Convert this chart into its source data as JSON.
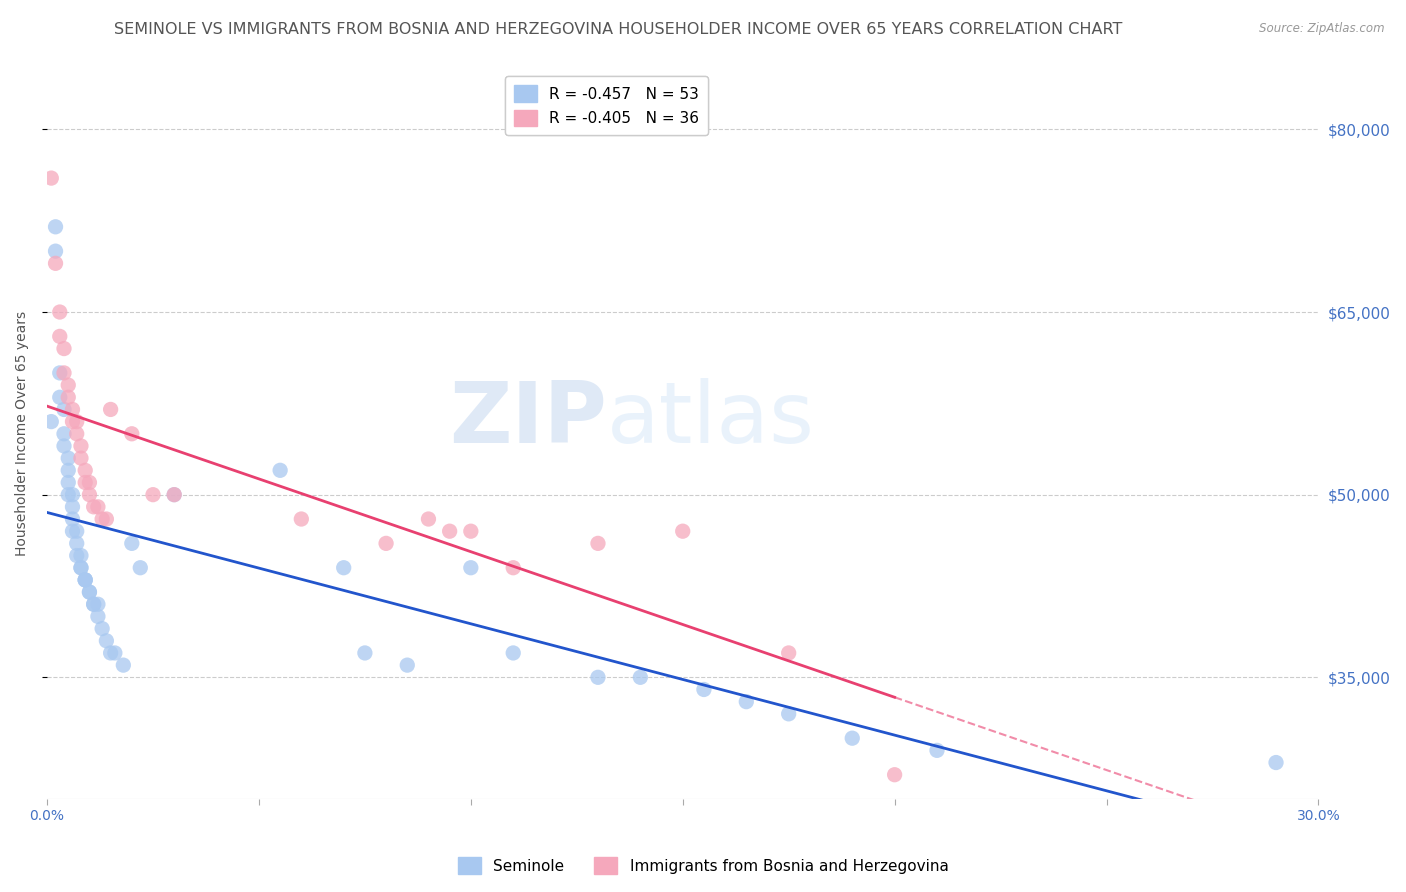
{
  "title": "SEMINOLE VS IMMIGRANTS FROM BOSNIA AND HERZEGOVINA HOUSEHOLDER INCOME OVER 65 YEARS CORRELATION CHART",
  "source": "Source: ZipAtlas.com",
  "ylabel": "Householder Income Over 65 years",
  "xlim": [
    0.0,
    0.3
  ],
  "ylim": [
    25000,
    85000
  ],
  "yticks": [
    35000,
    50000,
    65000,
    80000
  ],
  "ytick_labels": [
    "$35,000",
    "$50,000",
    "$65,000",
    "$80,000"
  ],
  "xticks": [
    0.0,
    0.05,
    0.1,
    0.15,
    0.2,
    0.25,
    0.3
  ],
  "xtick_labels": [
    "0.0%",
    "",
    "",
    "",
    "",
    "",
    "30.0%"
  ],
  "seminole_x": [
    0.001,
    0.002,
    0.002,
    0.003,
    0.003,
    0.004,
    0.004,
    0.004,
    0.005,
    0.005,
    0.005,
    0.005,
    0.006,
    0.006,
    0.006,
    0.006,
    0.007,
    0.007,
    0.007,
    0.008,
    0.008,
    0.008,
    0.009,
    0.009,
    0.009,
    0.01,
    0.01,
    0.011,
    0.011,
    0.012,
    0.012,
    0.013,
    0.014,
    0.015,
    0.016,
    0.018,
    0.02,
    0.022,
    0.03,
    0.055,
    0.07,
    0.075,
    0.085,
    0.1,
    0.11,
    0.13,
    0.14,
    0.155,
    0.165,
    0.175,
    0.19,
    0.21,
    0.29
  ],
  "seminole_y": [
    56000,
    72000,
    70000,
    60000,
    58000,
    57000,
    55000,
    54000,
    53000,
    52000,
    51000,
    50000,
    50000,
    49000,
    48000,
    47000,
    47000,
    46000,
    45000,
    45000,
    44000,
    44000,
    43000,
    43000,
    43000,
    42000,
    42000,
    41000,
    41000,
    41000,
    40000,
    39000,
    38000,
    37000,
    37000,
    36000,
    46000,
    44000,
    50000,
    52000,
    44000,
    37000,
    36000,
    44000,
    37000,
    35000,
    35000,
    34000,
    33000,
    32000,
    30000,
    29000,
    28000
  ],
  "bosnia_x": [
    0.001,
    0.002,
    0.003,
    0.003,
    0.004,
    0.004,
    0.005,
    0.005,
    0.006,
    0.006,
    0.007,
    0.007,
    0.008,
    0.008,
    0.009,
    0.009,
    0.01,
    0.01,
    0.011,
    0.012,
    0.013,
    0.014,
    0.015,
    0.02,
    0.025,
    0.03,
    0.06,
    0.08,
    0.09,
    0.095,
    0.1,
    0.11,
    0.13,
    0.15,
    0.175,
    0.2
  ],
  "bosnia_y": [
    76000,
    69000,
    65000,
    63000,
    62000,
    60000,
    59000,
    58000,
    57000,
    56000,
    56000,
    55000,
    54000,
    53000,
    52000,
    51000,
    51000,
    50000,
    49000,
    49000,
    48000,
    48000,
    57000,
    55000,
    50000,
    50000,
    48000,
    46000,
    48000,
    47000,
    47000,
    44000,
    46000,
    47000,
    37000,
    27000
  ],
  "seminole_color": "#A8C8F0",
  "seminole_line_color": "#2255CC",
  "bosnia_color": "#F5A8BC",
  "bosnia_line_color": "#E84070",
  "legend_entries": [
    {
      "label_r": "R = ",
      "label_r_val": "-0.457",
      "label_n": "   N = ",
      "label_n_val": "53",
      "color": "#A8C8F0"
    },
    {
      "label_r": "R = ",
      "label_r_val": "-0.405",
      "label_n": "   N = ",
      "label_n_val": "36",
      "color": "#F5A8BC"
    }
  ],
  "bottom_legend": [
    {
      "label": "Seminole",
      "color": "#A8C8F0"
    },
    {
      "label": "Immigrants from Bosnia and Herzegovina",
      "color": "#F5A8BC"
    }
  ],
  "watermark_zip": "ZIP",
  "watermark_atlas": "atlas",
  "background_color": "#FFFFFF",
  "axis_color": "#4472C4",
  "grid_color": "#CCCCCC",
  "title_color": "#555555",
  "title_fontsize": 11.5,
  "label_fontsize": 10,
  "tick_fontsize": 10,
  "marker_size": 11
}
